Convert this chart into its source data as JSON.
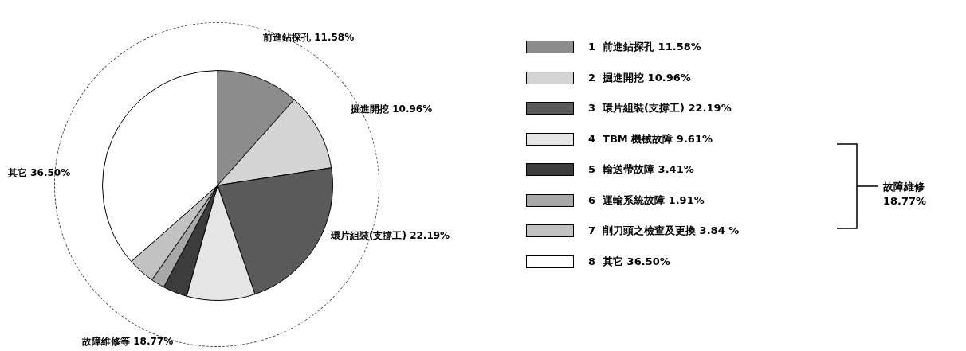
{
  "chart_data": {
    "type": "pie",
    "categories": [
      "1  前進鉆探孔",
      "2  掘進開挖",
      "3  環片組裝(支撐工)",
      "4  TBM 機械故障",
      "5  輸送帶故障",
      "6  運輸系統故障",
      "7  削刀頭之檢查及更換",
      "8  其它"
    ],
    "values": [
      11.58,
      10.96,
      22.19,
      9.61,
      3.41,
      1.91,
      3.84,
      36.5
    ],
    "value_labels": [
      "11.58%",
      "10.96%",
      "22.19%",
      "9.61%",
      "3.41%",
      "1.91%",
      "3.84 %",
      "36.50%"
    ],
    "colors": [
      "#8c8c8c",
      "#d4d4d4",
      "#5a5a5a",
      "#e6e6e6",
      "#3c3c3c",
      "#a8a8a8",
      "#c2c2c2",
      "#ffffff"
    ],
    "legend": "right",
    "annotations": [
      "前進鉆探孔 11.58%",
      "掘進開挖 10.96%",
      "環片組裝(支撐工) 22.19%",
      "其它 36.50%",
      "故障維修等 18.77%",
      "故障維修 18.77%"
    ]
  }
}
